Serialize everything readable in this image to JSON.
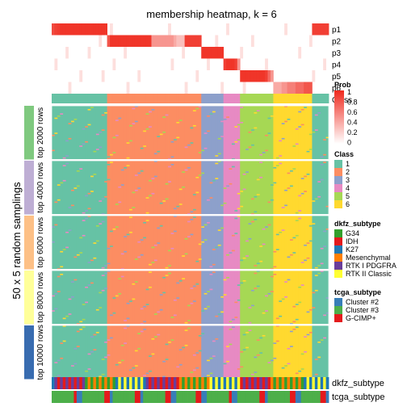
{
  "title": "membership heatmap, k = 6",
  "ylabel": "50 x 5 random samplings",
  "prob_rows": [
    "p1",
    "p2",
    "p3",
    "p4",
    "p5",
    "p6"
  ],
  "class_row_label": "Class",
  "row_groups": [
    "top 2000 rows",
    "top 4000 rows",
    "top 6000 rows",
    "top 8000 rows",
    "top 10000 rows"
  ],
  "bottom_annotations": [
    "dkfz_subtype",
    "tcga_subtype"
  ],
  "colors": {
    "class": [
      "#66C2A5",
      "#FC8D62",
      "#8DA0CB",
      "#E78AC3",
      "#A6D854",
      "#FFD92F"
    ],
    "group": [
      "#7FC97F",
      "#BEAED4",
      "#FDC086",
      "#FFFF99",
      "#386CB0"
    ],
    "prob_high": "#EF2A1E",
    "prob_low": "#FFFFFF",
    "dkfz": [
      "#33A02C",
      "#E31A1C",
      "#1F78B4",
      "#FF7F00",
      "#6A3D9A",
      "#FFFF33"
    ],
    "tcga": [
      "#377EB8",
      "#4DAF4A",
      "#E41A1C"
    ]
  },
  "legends": {
    "prob": {
      "title": "Prob",
      "ticks": [
        "1",
        "0.8",
        "0.6",
        "0.4",
        "0.2",
        "0"
      ]
    },
    "class": {
      "title": "Class",
      "items": [
        "1",
        "2",
        "3",
        "4",
        "5",
        "6"
      ]
    },
    "dkfz": {
      "title": "dkfz_subtype",
      "items": [
        "G34",
        "IDH",
        "K27",
        "Mesenchymal",
        "RTK I PDGFRA",
        "RTK II Classic"
      ]
    },
    "tcga": {
      "title": "tcga_subtype",
      "items": [
        "Cluster #2",
        "Cluster #3",
        "G-CIMP+"
      ]
    }
  },
  "chart_data": {
    "type": "heatmap",
    "title": "membership heatmap, k = 6",
    "n_samples": 100,
    "n_rows_per_group": 50,
    "column_class": [
      1,
      1,
      1,
      1,
      1,
      1,
      1,
      1,
      1,
      1,
      1,
      1,
      1,
      1,
      1,
      1,
      1,
      1,
      1,
      1,
      2,
      2,
      2,
      2,
      2,
      2,
      2,
      2,
      2,
      2,
      2,
      2,
      2,
      2,
      2,
      2,
      2,
      2,
      2,
      2,
      2,
      2,
      2,
      2,
      2,
      2,
      2,
      2,
      2,
      2,
      2,
      2,
      2,
      2,
      3,
      3,
      3,
      3,
      3,
      3,
      3,
      3,
      4,
      4,
      4,
      4,
      4,
      4,
      5,
      5,
      5,
      5,
      5,
      5,
      5,
      5,
      5,
      5,
      5,
      5,
      6,
      6,
      6,
      6,
      6,
      6,
      6,
      6,
      6,
      6,
      6,
      6,
      6,
      6,
      1,
      1,
      1,
      1,
      1,
      1
    ],
    "membership_prob": {
      "p1": [
        0.85,
        0.9,
        0.92,
        0.95,
        0.95,
        0.95,
        0.95,
        0.95,
        0.95,
        0.95,
        0.95,
        0.95,
        0.95,
        0.95,
        0.95,
        0.95,
        0.95,
        0.95,
        0.95,
        0.95
      ],
      "p2": [
        0.8,
        0.95,
        0.95,
        0.95,
        0.95,
        0.95,
        0.95,
        0.95,
        0.95,
        0.95,
        0.95,
        0.95,
        0.95,
        0.95,
        0.95,
        0.95,
        0.5,
        0.5,
        0.5,
        0.5,
        0.5,
        0.5,
        0.5,
        0.5,
        0.4,
        0.3,
        0.3,
        0.3
      ],
      "p3": [
        0.95,
        0.95,
        0.95,
        0.95,
        0.95,
        0.95,
        0.95,
        0.95
      ],
      "p4": [
        0.9,
        0.95,
        0.95,
        0.95,
        0.9,
        0.5
      ],
      "p5": [
        0.95,
        0.95,
        0.95,
        0.95,
        0.95,
        0.95,
        0.95,
        0.95,
        0.95,
        0.9,
        0.7,
        0.5
      ],
      "p6": [
        0.4,
        0.4,
        0.4,
        0.5,
        0.5,
        0.6,
        0.6,
        0.6,
        0.7,
        0.7,
        0.7,
        0.8,
        0.8,
        0.8
      ]
    },
    "row_groups": [
      "top 2000 rows",
      "top 4000 rows",
      "top 6000 rows",
      "top 8000 rows",
      "top 10000 rows"
    ],
    "legend_placement": "right"
  }
}
